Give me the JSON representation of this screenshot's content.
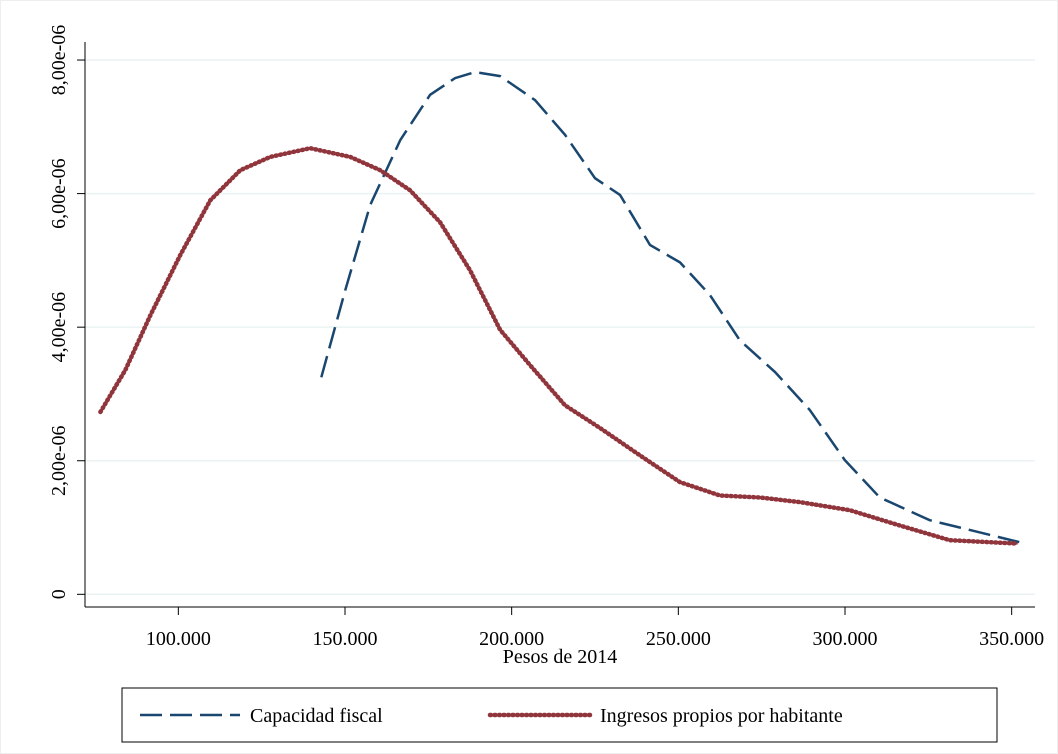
{
  "chart_data": {
    "type": "line",
    "x_label": "Pesos de 2014",
    "xlim": [
      72000,
      357000
    ],
    "ylim": [
      -1.9e-07,
      8.27e-06
    ],
    "xticks": [
      {
        "value": 100000,
        "label": "100.000"
      },
      {
        "value": 150000,
        "label": "150.000"
      },
      {
        "value": 200000,
        "label": "200.000"
      },
      {
        "value": 250000,
        "label": "250.000"
      },
      {
        "value": 300000,
        "label": "300.000"
      },
      {
        "value": 350000,
        "label": "350.000"
      }
    ],
    "yticks": [
      0,
      {
        "value": 2e-06,
        "label": "2,00e-06"
      },
      {
        "value": 4e-06,
        "label": "4,00e-06"
      },
      {
        "value": 6e-06,
        "label": "6,00e-06"
      },
      {
        "value": 8e-06,
        "label": "8,00e-06"
      }
    ],
    "grid": true,
    "legend": "bottom",
    "series": [
      {
        "name": "Capacidad fiscal",
        "color": "#1a476f",
        "style": "dashed",
        "x": [
          142900,
          150060,
          157550,
          166550,
          175540,
          183030,
          189030,
          196520,
          207000,
          216000,
          225000,
          232500,
          241500,
          250500,
          259500,
          268500,
          278960,
          289450,
          299940,
          310430,
          325420,
          334410,
          352400
        ],
        "values": [
          3.25e-06,
          4.55e-06,
          5.83e-06,
          6.8e-06,
          7.48e-06,
          7.73e-06,
          7.82e-06,
          7.76e-06,
          7.4e-06,
          6.88e-06,
          6.23e-06,
          5.98e-06,
          5.23e-06,
          4.97e-06,
          4.48e-06,
          3.8e-06,
          3.33e-06,
          2.76e-06,
          2.01e-06,
          1.45e-06,
          1.11e-06,
          1e-06,
          7.8e-07
        ]
      },
      {
        "name": "Ingresos propios por habitante",
        "color": "#90353b",
        "style": "dotted",
        "x": [
          76620,
          84110,
          91610,
          100600,
          109590,
          118590,
          127580,
          139570,
          151560,
          160550,
          169540,
          178540,
          187530,
          196520,
          205520,
          216010,
          226500,
          238490,
          250480,
          262470,
          274460,
          286450,
          301440,
          316430,
          331420,
          351800
        ],
        "values": [
          2.73e-06,
          3.36e-06,
          4.18e-06,
          5.08e-06,
          5.9e-06,
          6.35e-06,
          6.55e-06,
          6.68e-06,
          6.55e-06,
          6.35e-06,
          6.05e-06,
          5.57e-06,
          4.85e-06,
          3.96e-06,
          3.43e-06,
          2.83e-06,
          2.49e-06,
          2.08e-06,
          1.68e-06,
          1.48e-06,
          1.45e-06,
          1.38e-06,
          1.26e-06,
          1.03e-06,
          8.1e-07,
          7.6e-07
        ]
      }
    ]
  }
}
